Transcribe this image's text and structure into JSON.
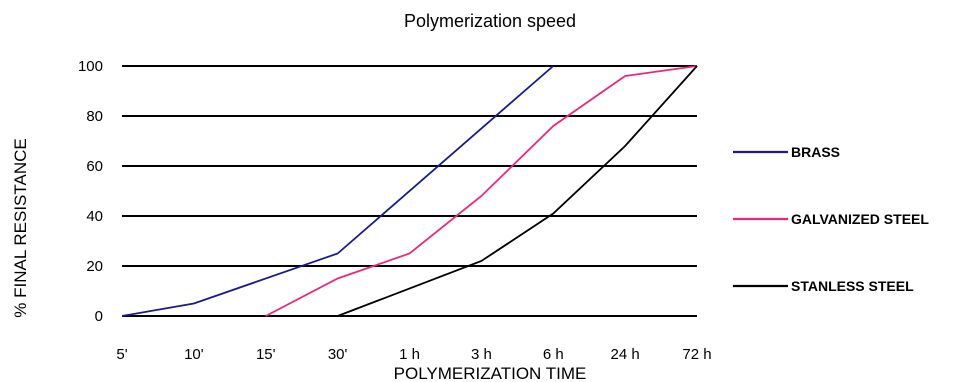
{
  "chart_data": {
    "type": "line",
    "title": "Polymerization speed",
    "xlabel": "POLYMERIZATION TIME",
    "ylabel": "% FINAL RESISTANCE",
    "categories": [
      "5'",
      "10'",
      "15'",
      "30'",
      "1 h",
      "3 h",
      "6 h",
      "24 h",
      "72 h"
    ],
    "yticks": [
      "0",
      "20",
      "40",
      "60",
      "80",
      "100"
    ],
    "ylim": [
      0,
      100
    ],
    "grid": "horizontal",
    "legend_position": "right",
    "series": [
      {
        "name": "BRASS",
        "color": "#1a1a8c",
        "x": [
          "5'",
          "10'",
          "30'",
          "6 h"
        ],
        "values": [
          0,
          5,
          25,
          100
        ]
      },
      {
        "name": "GALVANIZED STEEL",
        "color": "#e8287c",
        "x": [
          "15'",
          "30'",
          "1 h",
          "3 h",
          "6 h",
          "24 h",
          "72 h"
        ],
        "values": [
          0,
          15,
          25,
          48,
          76,
          96,
          100
        ]
      },
      {
        "name": "STANLESS STEEL",
        "color": "#000000",
        "x": [
          "30'",
          "3 h",
          "6 h",
          "24 h",
          "72 h"
        ],
        "values": [
          0,
          22,
          41,
          68,
          100
        ]
      }
    ]
  }
}
